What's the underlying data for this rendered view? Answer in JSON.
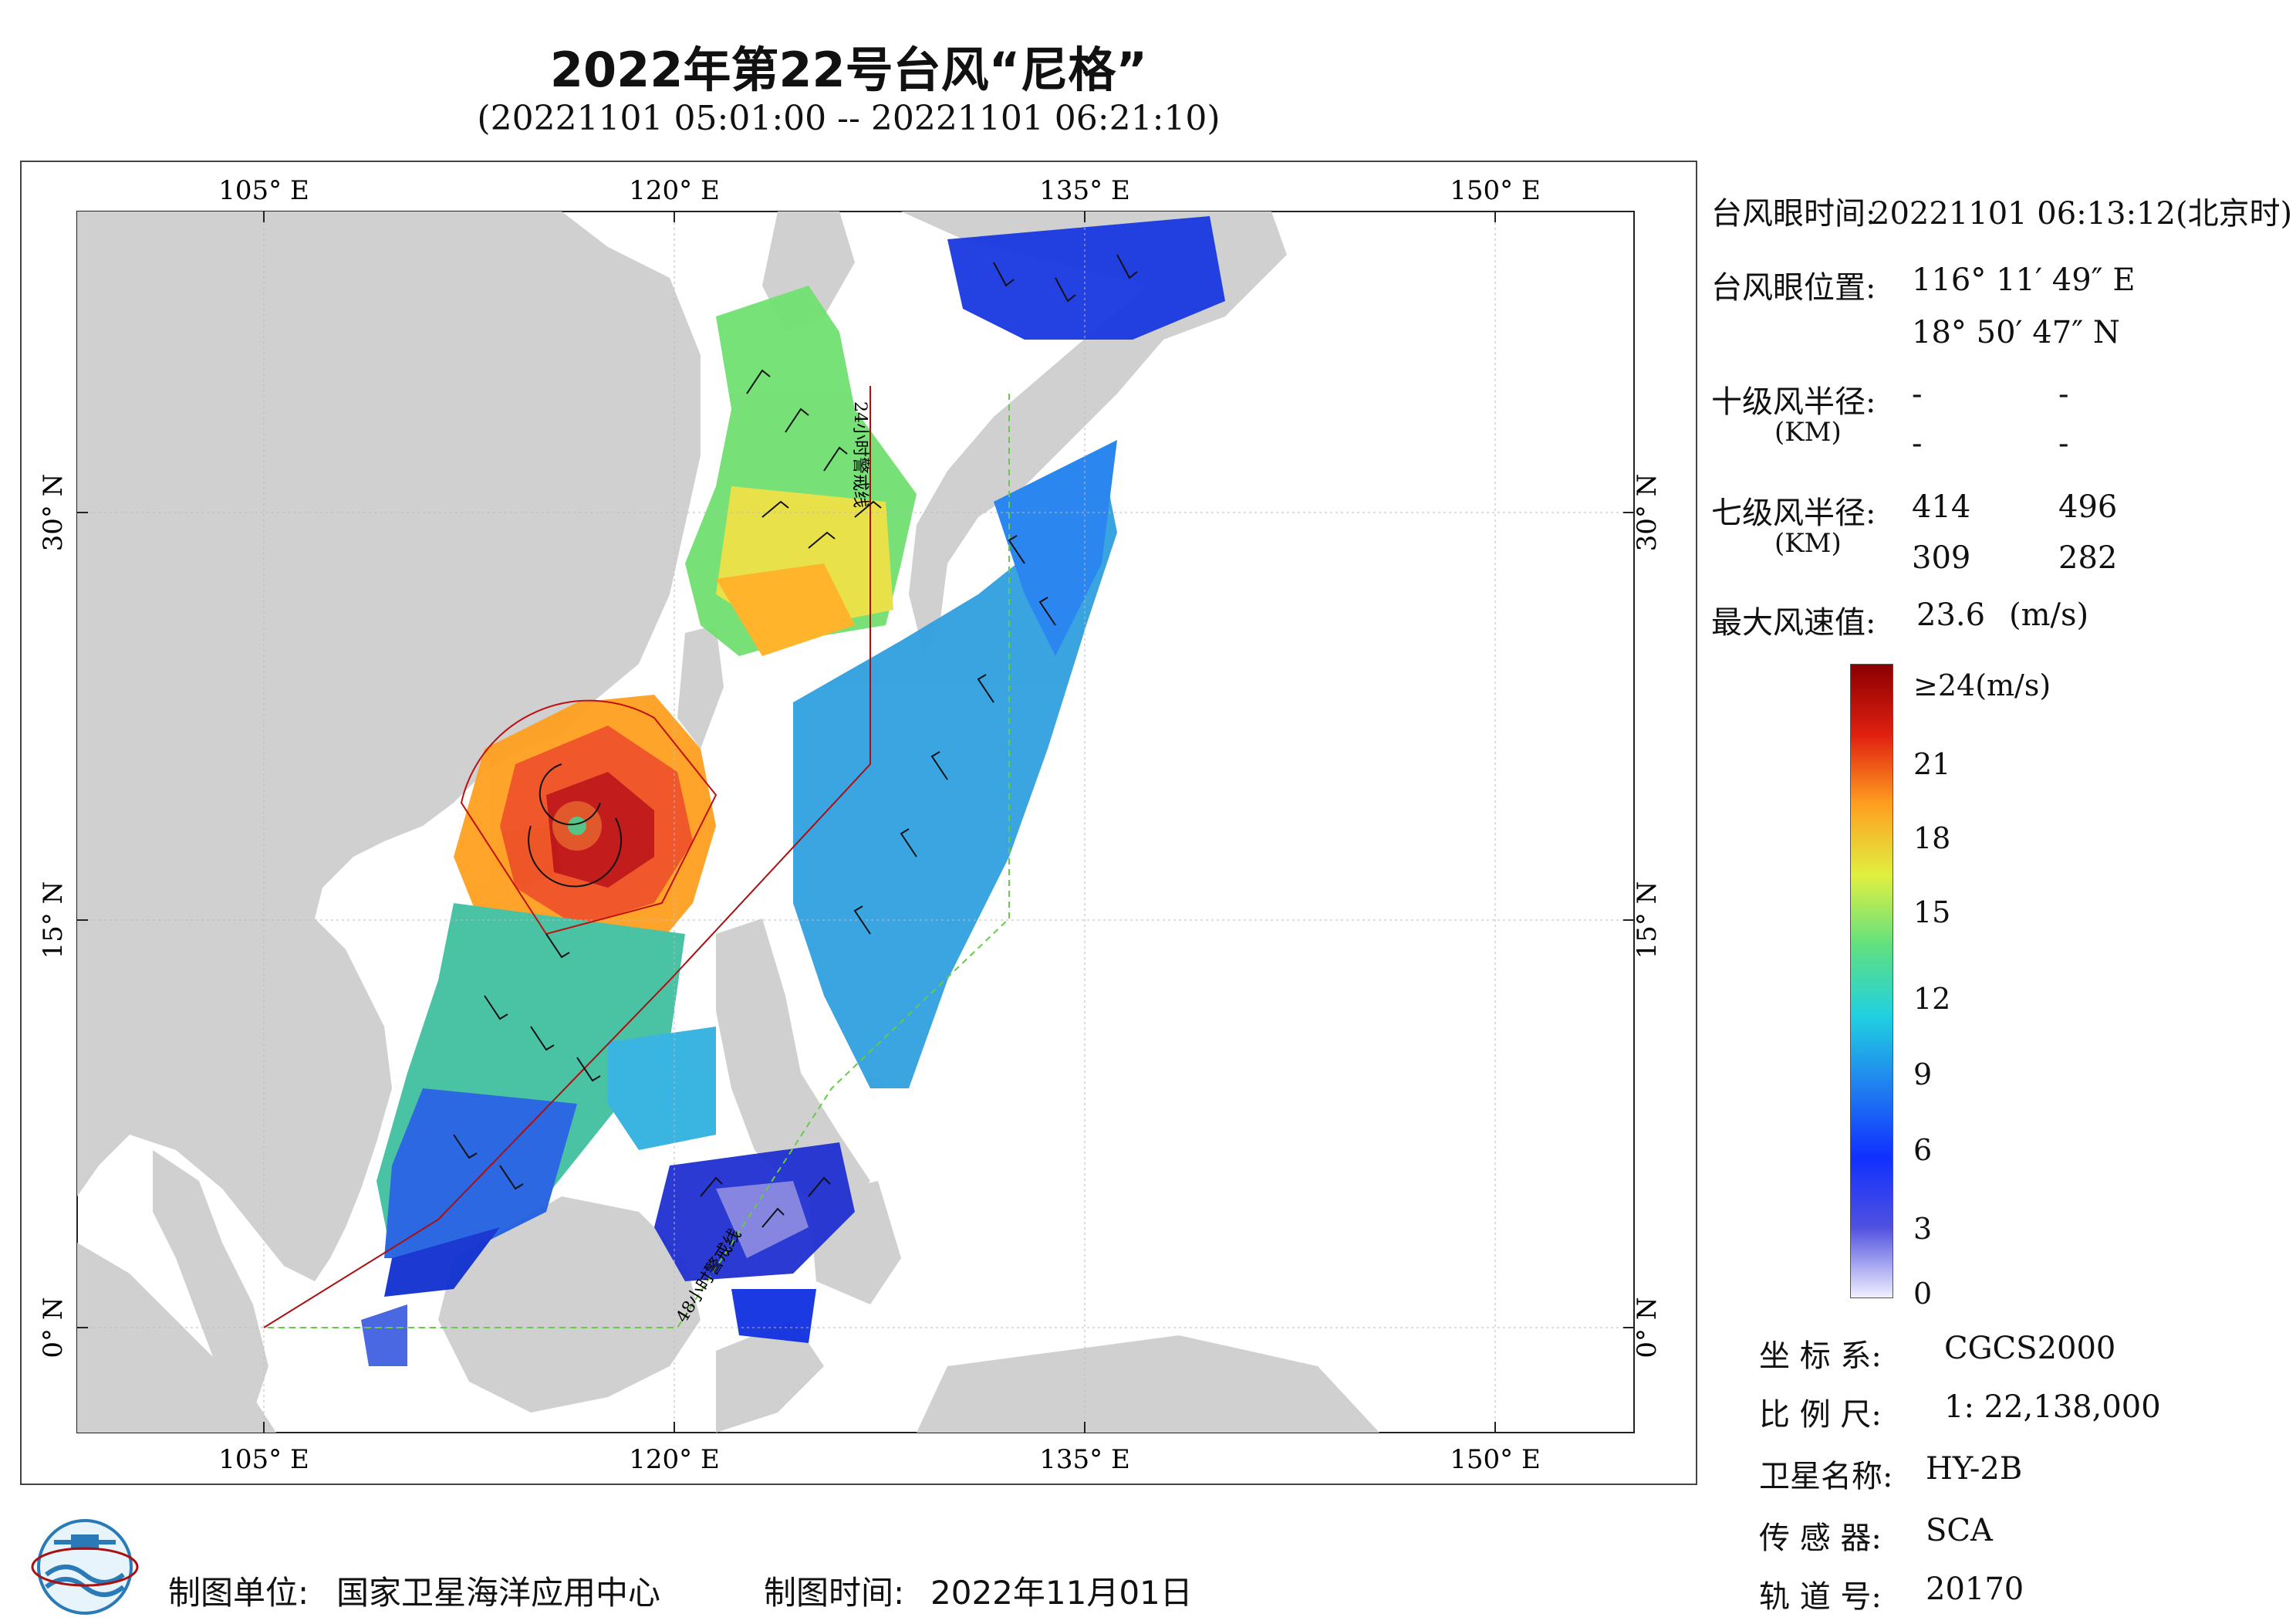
{
  "header": {
    "title": "2022年第22号台风“尼格”",
    "subtitle": "(20221101 05:01:00 -- 20221101 06:21:10)"
  },
  "map": {
    "lon_ticks": [
      "105° E",
      "120° E",
      "135° E",
      "150° E"
    ],
    "lat_ticks": [
      "30° N",
      "15° N",
      "0° N"
    ],
    "line_labels": [
      "24小时警戒线",
      "48小时警戒线"
    ]
  },
  "info": {
    "eye_time_label": "台风眼时间:",
    "eye_time_value": "20221101 06:13:12(北京时)",
    "eye_pos_label": "台风眼位置:",
    "eye_lon": "116° 11′ 49″ E",
    "eye_lat": "18° 50′ 47″ N",
    "r10_label": "十级风半径:",
    "r10_unit": "(KM)",
    "r10_values": [
      "-",
      "-",
      "-",
      "-"
    ],
    "r7_label": "七级风半径:",
    "r7_unit": "(KM)",
    "r7_values": [
      "414",
      "496",
      "309",
      "282"
    ],
    "max_wind_label": "最大风速值:",
    "max_wind_value": "23.6",
    "max_wind_unit": "(m/s)"
  },
  "colorbar": {
    "ticks": [
      "≥24(m/s)",
      "21",
      "18",
      "15",
      "12",
      "9",
      "6",
      "3",
      "0"
    ],
    "colors": [
      "#f0f0ff",
      "#5050e0",
      "#1030ff",
      "#2080f0",
      "#20d0e0",
      "#60e080",
      "#e0f040",
      "#ffa020",
      "#e02010",
      "#8b0000"
    ]
  },
  "meta": {
    "coord_label": "坐 标 系:",
    "coord_value": "CGCS2000",
    "scale_label": "比 例 尺:",
    "scale_value": "1: 22,138,000",
    "sat_label": "卫星名称:",
    "sat_value": "HY-2B",
    "sensor_label": "传 感 器:",
    "sensor_value": "SCA",
    "orbit_label": "轨 道 号:",
    "orbit_value": "20170"
  },
  "footer": {
    "unit_label": "制图单位:",
    "unit_value": "国家卫星海洋应用中心",
    "time_label": "制图时间:",
    "time_value": "2022年11月01日"
  }
}
